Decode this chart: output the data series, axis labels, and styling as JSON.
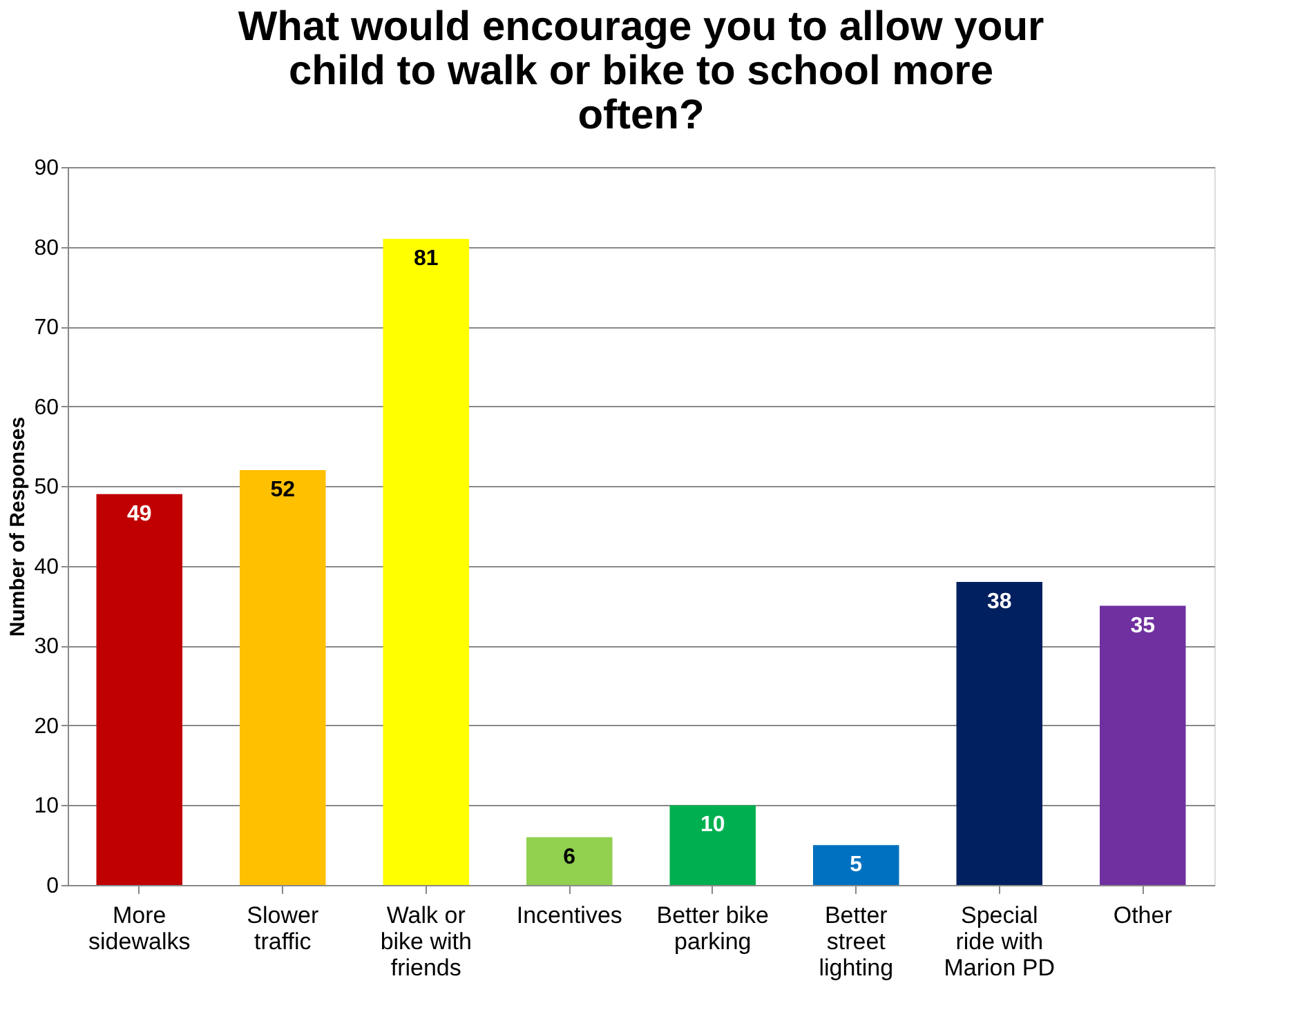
{
  "chart_data": {
    "type": "bar",
    "title": "What would encourage you to allow your child to walk or bike to school more often?",
    "ylabel": "Number of Responses",
    "categories": [
      "More sidewalks",
      "Slower traffic",
      "Walk or bike with friends",
      "Incentives",
      "Better bike parking",
      "Better street lighting",
      "Special ride with Marion PD",
      "Other"
    ],
    "values": [
      49,
      52,
      81,
      6,
      10,
      5,
      38,
      35
    ],
    "colors": [
      "#c00000",
      "#ffc000",
      "#ffff00",
      "#92d050",
      "#00b050",
      "#0070c0",
      "#002060",
      "#7030a0"
    ],
    "ylim": [
      0,
      90
    ],
    "yticks": [
      0,
      10,
      20,
      30,
      40,
      50,
      60,
      70,
      80,
      90
    ],
    "grid": "y",
    "data_labels": true
  }
}
